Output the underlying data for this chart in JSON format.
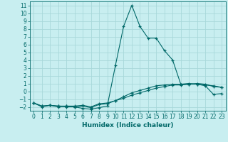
{
  "title": "",
  "xlabel": "Humidex (Indice chaleur)",
  "ylabel": "",
  "bg_color": "#c8eef0",
  "grid_color": "#a8d8da",
  "line_color": "#006868",
  "xlim": [
    -0.5,
    23.5
  ],
  "ylim": [
    -2.5,
    11.5
  ],
  "xticks": [
    0,
    1,
    2,
    3,
    4,
    5,
    6,
    7,
    8,
    9,
    10,
    11,
    12,
    13,
    14,
    15,
    16,
    17,
    18,
    19,
    20,
    21,
    22,
    23
  ],
  "yticks": [
    -2,
    -1,
    0,
    1,
    2,
    3,
    4,
    5,
    6,
    7,
    8,
    9,
    10,
    11
  ],
  "curve1_x": [
    0,
    1,
    2,
    3,
    4,
    5,
    6,
    7,
    8,
    9,
    10,
    11,
    12,
    13,
    14,
    15,
    16,
    17,
    18,
    19,
    20,
    21,
    22,
    23
  ],
  "curve1_y": [
    -1.5,
    -2.0,
    -1.8,
    -2.0,
    -1.9,
    -2.0,
    -2.2,
    -2.3,
    -2.1,
    -1.9,
    3.3,
    8.3,
    11.0,
    8.3,
    6.8,
    6.8,
    5.2,
    4.0,
    0.9,
    1.0,
    0.9,
    0.7,
    -0.4,
    -0.3
  ],
  "curve2_x": [
    0,
    1,
    2,
    3,
    4,
    5,
    6,
    7,
    8,
    9,
    10,
    11,
    12,
    13,
    14,
    15,
    16,
    17,
    18,
    19,
    20,
    21,
    22,
    23
  ],
  "curve2_y": [
    -1.5,
    -1.9,
    -1.8,
    -1.9,
    -1.9,
    -1.9,
    -1.8,
    -2.0,
    -1.6,
    -1.5,
    -1.2,
    -0.9,
    -0.5,
    -0.2,
    0.1,
    0.4,
    0.6,
    0.8,
    0.8,
    0.9,
    0.9,
    0.8,
    0.7,
    0.5
  ],
  "curve3_x": [
    0,
    1,
    2,
    3,
    4,
    5,
    6,
    7,
    8,
    9,
    10,
    11,
    12,
    13,
    14,
    15,
    16,
    17,
    18,
    19,
    20,
    21,
    22,
    23
  ],
  "curve3_y": [
    -1.5,
    -1.9,
    -1.8,
    -1.9,
    -2.0,
    -2.0,
    -1.9,
    -2.1,
    -1.7,
    -1.6,
    -1.2,
    -0.7,
    -0.2,
    0.1,
    0.4,
    0.7,
    0.8,
    0.9,
    0.9,
    0.9,
    1.0,
    0.9,
    0.6,
    0.5
  ],
  "label_fontsize": 5.5,
  "xlabel_fontsize": 6.5
}
